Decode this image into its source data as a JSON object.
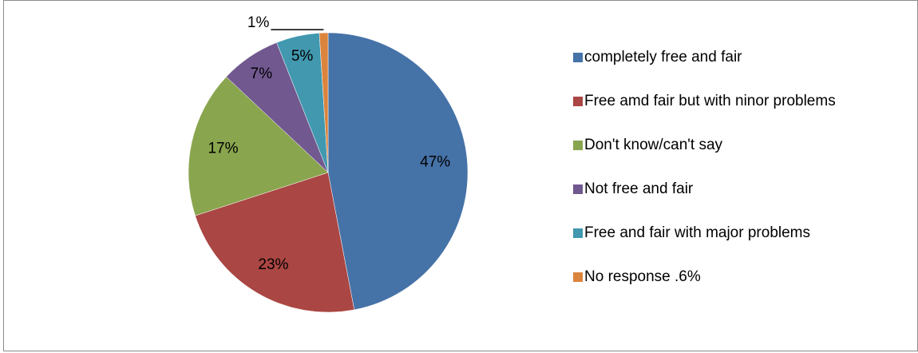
{
  "chart_data": {
    "type": "pie",
    "categories": [
      "completely free and fair",
      "Free amd fair but with  ninor problems",
      "Don't know/can't say",
      "Not free and fair",
      "Free and fair with major problems",
      "No response .6%"
    ],
    "values": [
      47,
      23,
      17,
      7,
      5,
      1
    ],
    "value_labels": [
      "47%",
      "23%",
      "17%",
      "7%",
      "5%",
      "1%"
    ],
    "colors": [
      "#4572a7",
      "#aa4643",
      "#89a54e",
      "#71588f",
      "#4198af",
      "#db843d"
    ],
    "legend": "right"
  }
}
